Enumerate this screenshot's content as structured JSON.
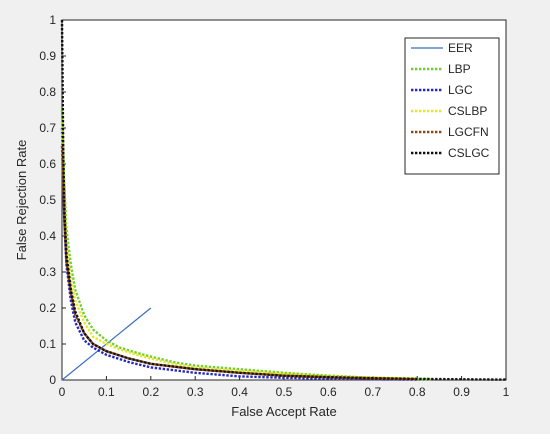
{
  "chart_data": {
    "type": "line",
    "title": "",
    "xlabel": "False Accept Rate",
    "ylabel": "False Rejection Rate",
    "xlim": [
      0,
      1
    ],
    "ylim": [
      0,
      1
    ],
    "xticks": [
      "0",
      "0.1",
      "0.2",
      "0.3",
      "0.4",
      "0.5",
      "0.6",
      "0.7",
      "0.8",
      "0.9",
      "1"
    ],
    "yticks": [
      "0",
      "0.1",
      "0.2",
      "0.3",
      "0.4",
      "0.5",
      "0.6",
      "0.7",
      "0.8",
      "0.9",
      "1"
    ],
    "grid": false,
    "legend_position": "top-right",
    "series": [
      {
        "name": "EER",
        "color": "#3a6fc4",
        "style": "solid",
        "x": [
          0,
          0.2
        ],
        "y": [
          0,
          0.2
        ]
      },
      {
        "name": "LBP",
        "color": "#6fcf2f",
        "style": "dotted",
        "x": [
          0,
          0.005,
          0.01,
          0.02,
          0.03,
          0.05,
          0.07,
          0.1,
          0.13,
          0.17,
          0.2,
          0.25,
          0.3,
          0.4,
          0.5,
          0.6,
          0.7,
          0.8,
          0.83
        ],
        "y": [
          0.75,
          0.55,
          0.42,
          0.32,
          0.25,
          0.18,
          0.14,
          0.11,
          0.09,
          0.075,
          0.065,
          0.05,
          0.04,
          0.03,
          0.02,
          0.012,
          0.006,
          0.003,
          0.002
        ]
      },
      {
        "name": "LGC",
        "color": "#2626c8",
        "style": "dotted",
        "x": [
          0,
          0.005,
          0.01,
          0.02,
          0.03,
          0.05,
          0.07,
          0.1,
          0.15,
          0.2,
          0.3,
          0.4,
          0.5,
          0.6,
          0.7,
          0.8
        ],
        "y": [
          0.7,
          0.45,
          0.32,
          0.22,
          0.16,
          0.11,
          0.09,
          0.07,
          0.05,
          0.035,
          0.02,
          0.01,
          0.006,
          0.004,
          0.002,
          0.001
        ]
      },
      {
        "name": "CSLBP",
        "color": "#e6e62a",
        "style": "dotted",
        "x": [
          0,
          0.005,
          0.01,
          0.02,
          0.03,
          0.05,
          0.07,
          0.1,
          0.13,
          0.17,
          0.2,
          0.25,
          0.3,
          0.4,
          0.5,
          0.6,
          0.8
        ],
        "y": [
          0.72,
          0.5,
          0.38,
          0.28,
          0.22,
          0.16,
          0.12,
          0.1,
          0.085,
          0.07,
          0.06,
          0.045,
          0.035,
          0.025,
          0.018,
          0.01,
          0.004
        ]
      },
      {
        "name": "LGCFN",
        "color": "#8b4a14",
        "style": "dotted",
        "x": [
          0,
          0.005,
          0.01,
          0.02,
          0.03,
          0.05,
          0.07,
          0.1,
          0.15,
          0.2,
          0.3,
          0.4,
          0.5,
          0.6,
          0.7,
          0.8
        ],
        "y": [
          0.65,
          0.45,
          0.33,
          0.24,
          0.18,
          0.13,
          0.1,
          0.08,
          0.06,
          0.045,
          0.03,
          0.02,
          0.012,
          0.007,
          0.004,
          0.002
        ]
      },
      {
        "name": "CSLGC",
        "color": "#111111",
        "style": "dotted",
        "x": [
          0,
          0.003,
          0.006,
          0.01,
          0.02,
          0.03,
          0.05,
          0.07,
          0.1,
          0.15,
          0.2,
          0.3,
          0.4,
          0.5,
          0.6,
          0.7,
          0.8,
          0.9,
          1.0
        ],
        "y": [
          1.0,
          0.62,
          0.45,
          0.35,
          0.25,
          0.19,
          0.13,
          0.1,
          0.08,
          0.06,
          0.045,
          0.03,
          0.02,
          0.012,
          0.008,
          0.005,
          0.003,
          0.002,
          0.001
        ]
      }
    ]
  }
}
